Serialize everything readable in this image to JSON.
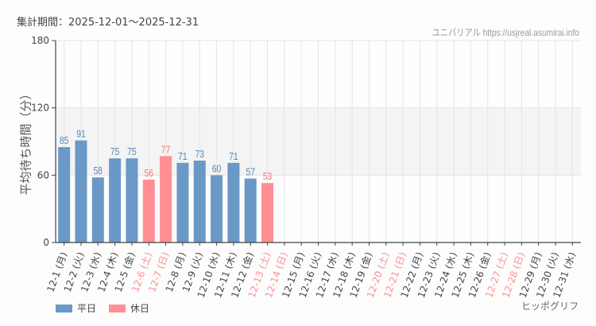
{
  "header": {
    "period_label": "集計期間：2025-12-01～2025-12-31",
    "credit": "ユニバリアル  https://usjreal.asumirai.info"
  },
  "footer": {
    "brand": "ヒッポグリフ"
  },
  "legend": [
    {
      "label": "平日",
      "color": "#6a98c7"
    },
    {
      "label": "休日",
      "color": "#ff8f93"
    }
  ],
  "colors": {
    "weekday": "#6a98c7",
    "holiday": "#ff8f93",
    "weekday_label": "#5a86b8",
    "holiday_label": "#f57a80",
    "band": "#f3f4f3",
    "grid": "#e3e4e3"
  },
  "chart_data": {
    "type": "bar",
    "title": "集計期間：2025-12-01～2025-12-31",
    "xlabel": "",
    "ylabel": "平均待ち時間（分）",
    "ylim": [
      0,
      180
    ],
    "yticks": [
      0,
      60,
      120,
      180
    ],
    "grid": true,
    "legend_position": "bottom-left",
    "categories": [
      "12-1 (月)",
      "12-2 (火)",
      "12-3 (水)",
      "12-4 (木)",
      "12-5 (金)",
      "12-6 (土)",
      "12-7 (日)",
      "12-8 (月)",
      "12-9 (火)",
      "12-10 (水)",
      "12-11 (木)",
      "12-12 (金)",
      "12-13 (土)",
      "12-14 (日)",
      "12-15 (月)",
      "12-16 (火)",
      "12-17 (水)",
      "12-18 (木)",
      "12-19 (金)",
      "12-20 (土)",
      "12-21 (日)",
      "12-22 (月)",
      "12-23 (火)",
      "12-24 (水)",
      "12-25 (木)",
      "12-26 (金)",
      "12-27 (土)",
      "12-28 (日)",
      "12-29 (月)",
      "12-30 (火)",
      "12-31 (水)"
    ],
    "holiday": [
      false,
      false,
      false,
      false,
      false,
      true,
      true,
      false,
      false,
      false,
      false,
      false,
      true,
      true,
      false,
      false,
      false,
      false,
      false,
      true,
      true,
      false,
      false,
      false,
      false,
      false,
      true,
      true,
      false,
      false,
      false
    ],
    "series": [
      {
        "name": "平日",
        "values": [
          85,
          91,
          58,
          75,
          75,
          null,
          null,
          71,
          73,
          60,
          71,
          57,
          null,
          null,
          null,
          null,
          null,
          null,
          null,
          null,
          null,
          null,
          null,
          null,
          null,
          null,
          null,
          null,
          null,
          null,
          null
        ]
      },
      {
        "name": "休日",
        "values": [
          null,
          null,
          null,
          null,
          null,
          56,
          77,
          null,
          null,
          null,
          null,
          null,
          53,
          null,
          null,
          null,
          null,
          null,
          null,
          null,
          null,
          null,
          null,
          null,
          null,
          null,
          null,
          null,
          null,
          null,
          null
        ]
      }
    ]
  }
}
